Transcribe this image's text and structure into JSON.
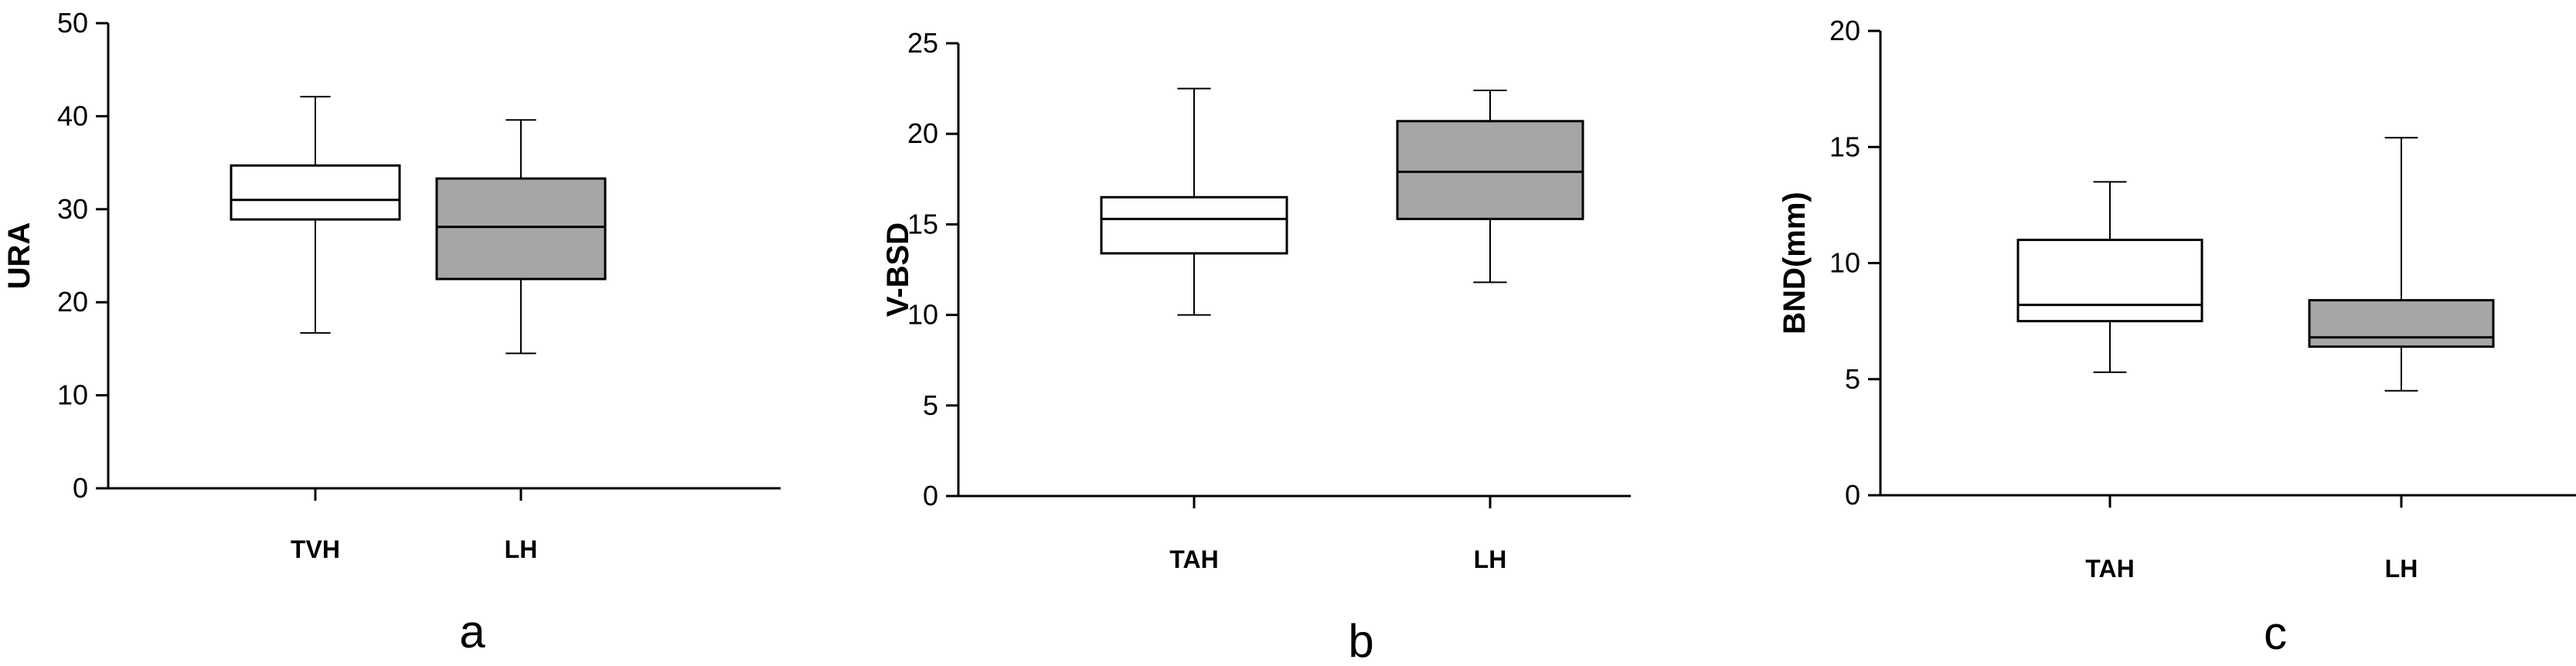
{
  "chart_data": [
    {
      "type": "boxplot",
      "panel_label": "a",
      "ylabel": "URA",
      "ylim": [
        0,
        50
      ],
      "yticks": [
        "0",
        "10",
        "20",
        "30",
        "40",
        "50"
      ],
      "categories": [
        "TVH",
        "LH"
      ],
      "boxes": [
        {
          "min": 16.7,
          "q1": 28.9,
          "median": 31.0,
          "q3": 34.7,
          "max": 42.1,
          "fill": "#ffffff"
        },
        {
          "min": 14.5,
          "q1": 22.5,
          "median": 28.1,
          "q3": 33.3,
          "max": 39.6,
          "fill": "#a6a6a6"
        }
      ]
    },
    {
      "type": "boxplot",
      "panel_label": "b",
      "ylabel": "V-BSD",
      "ylim": [
        0,
        25
      ],
      "yticks": [
        "0",
        "5",
        "10",
        "15",
        "20",
        "25"
      ],
      "categories": [
        "TAH",
        "LH"
      ],
      "boxes": [
        {
          "min": 10.0,
          "q1": 13.4,
          "median": 15.3,
          "q3": 16.5,
          "max": 22.5,
          "fill": "#ffffff"
        },
        {
          "min": 11.8,
          "q1": 15.3,
          "median": 17.9,
          "q3": 20.7,
          "max": 22.4,
          "fill": "#a6a6a6"
        }
      ]
    },
    {
      "type": "boxplot",
      "panel_label": "c",
      "ylabel": "BND(mm)",
      "ylim": [
        0,
        20
      ],
      "yticks": [
        "0",
        "5",
        "10",
        "15",
        "20"
      ],
      "categories": [
        "TAH",
        "LH"
      ],
      "boxes": [
        {
          "min": 5.3,
          "q1": 7.5,
          "median": 8.2,
          "q3": 11.0,
          "max": 13.5,
          "fill": "#ffffff"
        },
        {
          "min": 4.5,
          "q1": 6.4,
          "median": 6.8,
          "q3": 8.4,
          "max": 15.4,
          "fill": "#a6a6a6"
        }
      ]
    }
  ]
}
